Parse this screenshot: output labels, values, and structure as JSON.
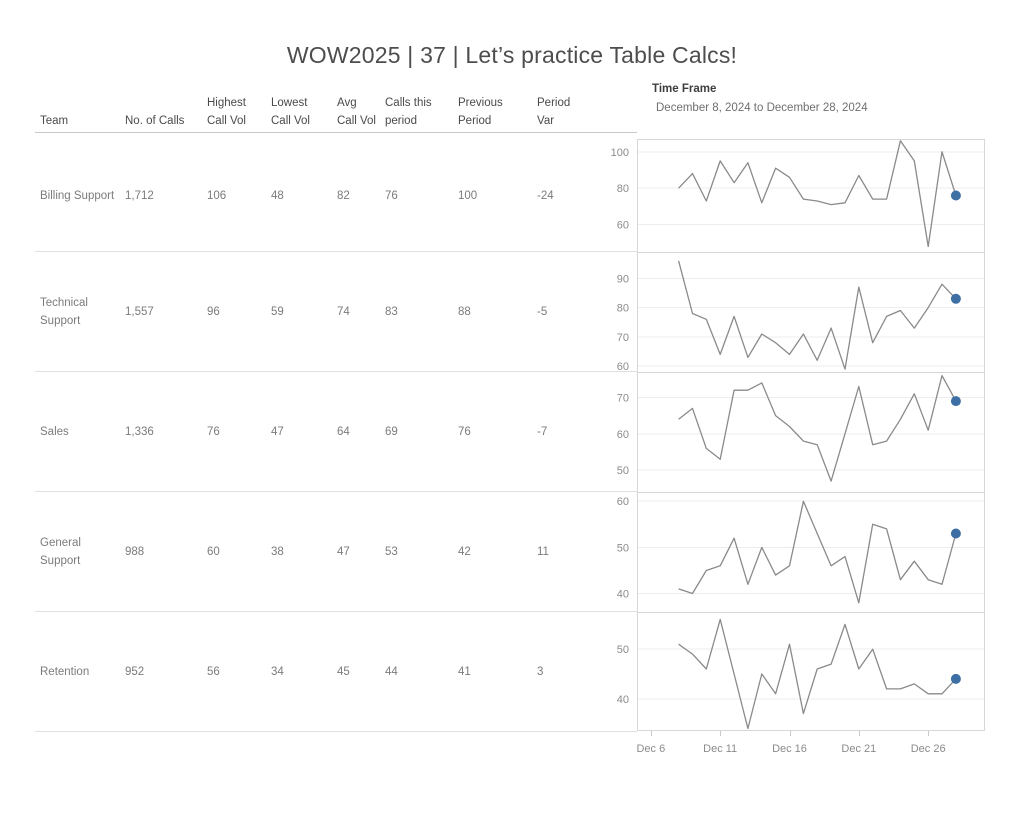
{
  "title": "WOW2025 | 37 | Let’s practice Table Calcs!",
  "time_frame": {
    "label": "Time Frame",
    "range": "December 8, 2024 to December 28, 2024"
  },
  "table": {
    "columns": [
      {
        "key": "team",
        "label": "Team"
      },
      {
        "key": "no_of_calls",
        "label": "No. of Calls"
      },
      {
        "key": "highest_call_vol",
        "label": "Highest\nCall Vol"
      },
      {
        "key": "lowest_call_vol",
        "label": "Lowest\nCall Vol"
      },
      {
        "key": "avg_call_vol",
        "label": "Avg\nCall Vol"
      },
      {
        "key": "calls_this_period",
        "label": "Calls this\nperiod"
      },
      {
        "key": "previous_period",
        "label": "Previous\nPeriod"
      },
      {
        "key": "period_var",
        "label": "Period\nVar"
      }
    ],
    "teams": [
      {
        "team": "Billing Support",
        "no_of_calls": "1,712",
        "highest_call_vol": "106",
        "lowest_call_vol": "48",
        "avg_call_vol": "82",
        "calls_this_period": "76",
        "previous_period": "100",
        "period_var": "-24"
      },
      {
        "team": "Technical Support",
        "no_of_calls": "1,557",
        "highest_call_vol": "96",
        "lowest_call_vol": "59",
        "avg_call_vol": "74",
        "calls_this_period": "83",
        "previous_period": "88",
        "period_var": "-5"
      },
      {
        "team": "Sales",
        "no_of_calls": "1,336",
        "highest_call_vol": "76",
        "lowest_call_vol": "47",
        "avg_call_vol": "64",
        "calls_this_period": "69",
        "previous_period": "76",
        "period_var": "-7"
      },
      {
        "team": "General Support",
        "no_of_calls": "988",
        "highest_call_vol": "60",
        "lowest_call_vol": "38",
        "avg_call_vol": "47",
        "calls_this_period": "53",
        "previous_period": "42",
        "period_var": "11"
      },
      {
        "team": "Retention",
        "no_of_calls": "952",
        "highest_call_vol": "56",
        "lowest_call_vol": "34",
        "avg_call_vol": "45",
        "calls_this_period": "44",
        "previous_period": "41",
        "period_var": "3"
      }
    ]
  },
  "x_axis": {
    "domain_days": [
      5,
      30.1
    ],
    "data_days_start": 8,
    "data_days_end": 28,
    "ticks": [
      {
        "label": "Dec 6",
        "day": 6
      },
      {
        "label": "Dec 11",
        "day": 11
      },
      {
        "label": "Dec 16",
        "day": 16
      },
      {
        "label": "Dec 21",
        "day": 21
      },
      {
        "label": "Dec 26",
        "day": 26
      }
    ]
  },
  "chart_data": [
    {
      "type": "line",
      "team": "Billing Support",
      "x_range": "Dec 8 - Dec 28, 2024",
      "values": [
        80,
        88,
        73,
        95,
        83,
        94,
        72,
        91,
        86,
        74,
        73,
        71,
        72,
        87,
        74,
        74,
        106,
        95,
        48,
        100,
        76
      ],
      "yticks": [
        100,
        80,
        60
      ],
      "ylim": [
        45,
        107
      ],
      "last_value": 76
    },
    {
      "type": "line",
      "team": "Technical Support",
      "x_range": "Dec 8 - Dec 28, 2024",
      "values": [
        96,
        78,
        76,
        64,
        77,
        63,
        71,
        68,
        64,
        71,
        62,
        73,
        59,
        87,
        68,
        77,
        79,
        73,
        80,
        88,
        83
      ],
      "yticks": [
        90,
        80,
        70,
        60
      ],
      "ylim": [
        58,
        99
      ],
      "last_value": 83
    },
    {
      "type": "line",
      "team": "Sales",
      "x_range": "Dec 8 - Dec 28, 2024",
      "values": [
        64,
        67,
        56,
        53,
        72,
        72,
        74,
        65,
        62,
        58,
        57,
        47,
        60,
        73,
        57,
        58,
        64,
        71,
        61,
        76,
        69
      ],
      "yticks": [
        70,
        60,
        50
      ],
      "ylim": [
        44,
        77
      ],
      "last_value": 69
    },
    {
      "type": "line",
      "team": "General Support",
      "x_range": "Dec 8 - Dec 28, 2024",
      "values": [
        41,
        40,
        45,
        46,
        52,
        42,
        50,
        44,
        46,
        60,
        53,
        46,
        48,
        38,
        55,
        54,
        43,
        47,
        43,
        42,
        53
      ],
      "yticks": [
        60,
        50,
        40
      ],
      "ylim": [
        36,
        62
      ],
      "last_value": 53
    },
    {
      "type": "line",
      "team": "Retention",
      "x_range": "Dec 8 - Dec 28, 2024",
      "values": [
        51,
        49,
        46,
        56,
        45,
        34,
        45,
        41,
        51,
        37,
        46,
        47,
        55,
        46,
        50,
        42,
        42,
        43,
        41,
        41,
        44
      ],
      "yticks": [
        50,
        40
      ],
      "ylim": [
        33.5,
        57.5
      ],
      "last_value": 44
    }
  ],
  "colors": {
    "line": "#8a8a8a",
    "marker": "#3d6fa5",
    "grid": "#ededed",
    "panel_border": "#d7d7d7",
    "text_muted": "#7b7b7b",
    "text_header": "#4a4a4a",
    "title": "#4d4d4d",
    "axis_text": "#8b8b8b"
  }
}
